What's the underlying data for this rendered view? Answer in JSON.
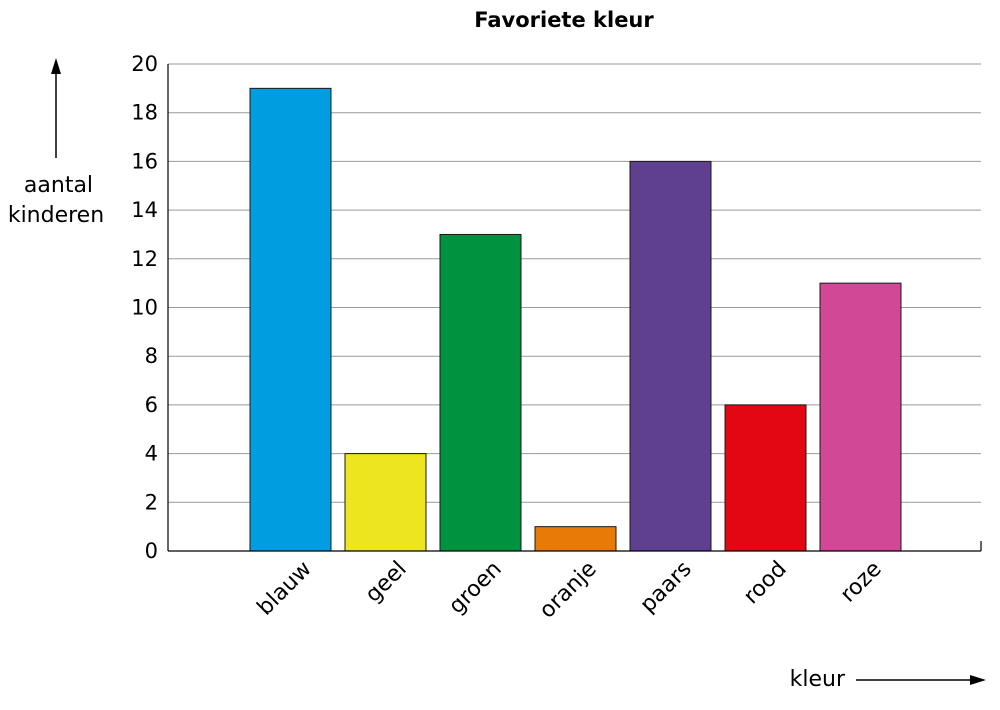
{
  "chart_data": {
    "type": "bar",
    "title": "Favoriete kleur",
    "ylabel_lines": [
      "aantal",
      "kinderen"
    ],
    "xlabel": "kleur",
    "categories": [
      "blauw",
      "geel",
      "groen",
      "oranje",
      "paars",
      "rood",
      "roze"
    ],
    "values": [
      19,
      4,
      13,
      1,
      16,
      6,
      11
    ],
    "colors": [
      "#009de0",
      "#ede51f",
      "#00923f",
      "#e87b06",
      "#5f3f8f",
      "#e30613",
      "#d14896"
    ],
    "ylim": [
      0,
      20
    ],
    "yticks": [
      "0",
      "2",
      "4",
      "6",
      "8",
      "10",
      "12",
      "14",
      "16",
      "18",
      "20"
    ],
    "grid": true,
    "legend": "none"
  }
}
